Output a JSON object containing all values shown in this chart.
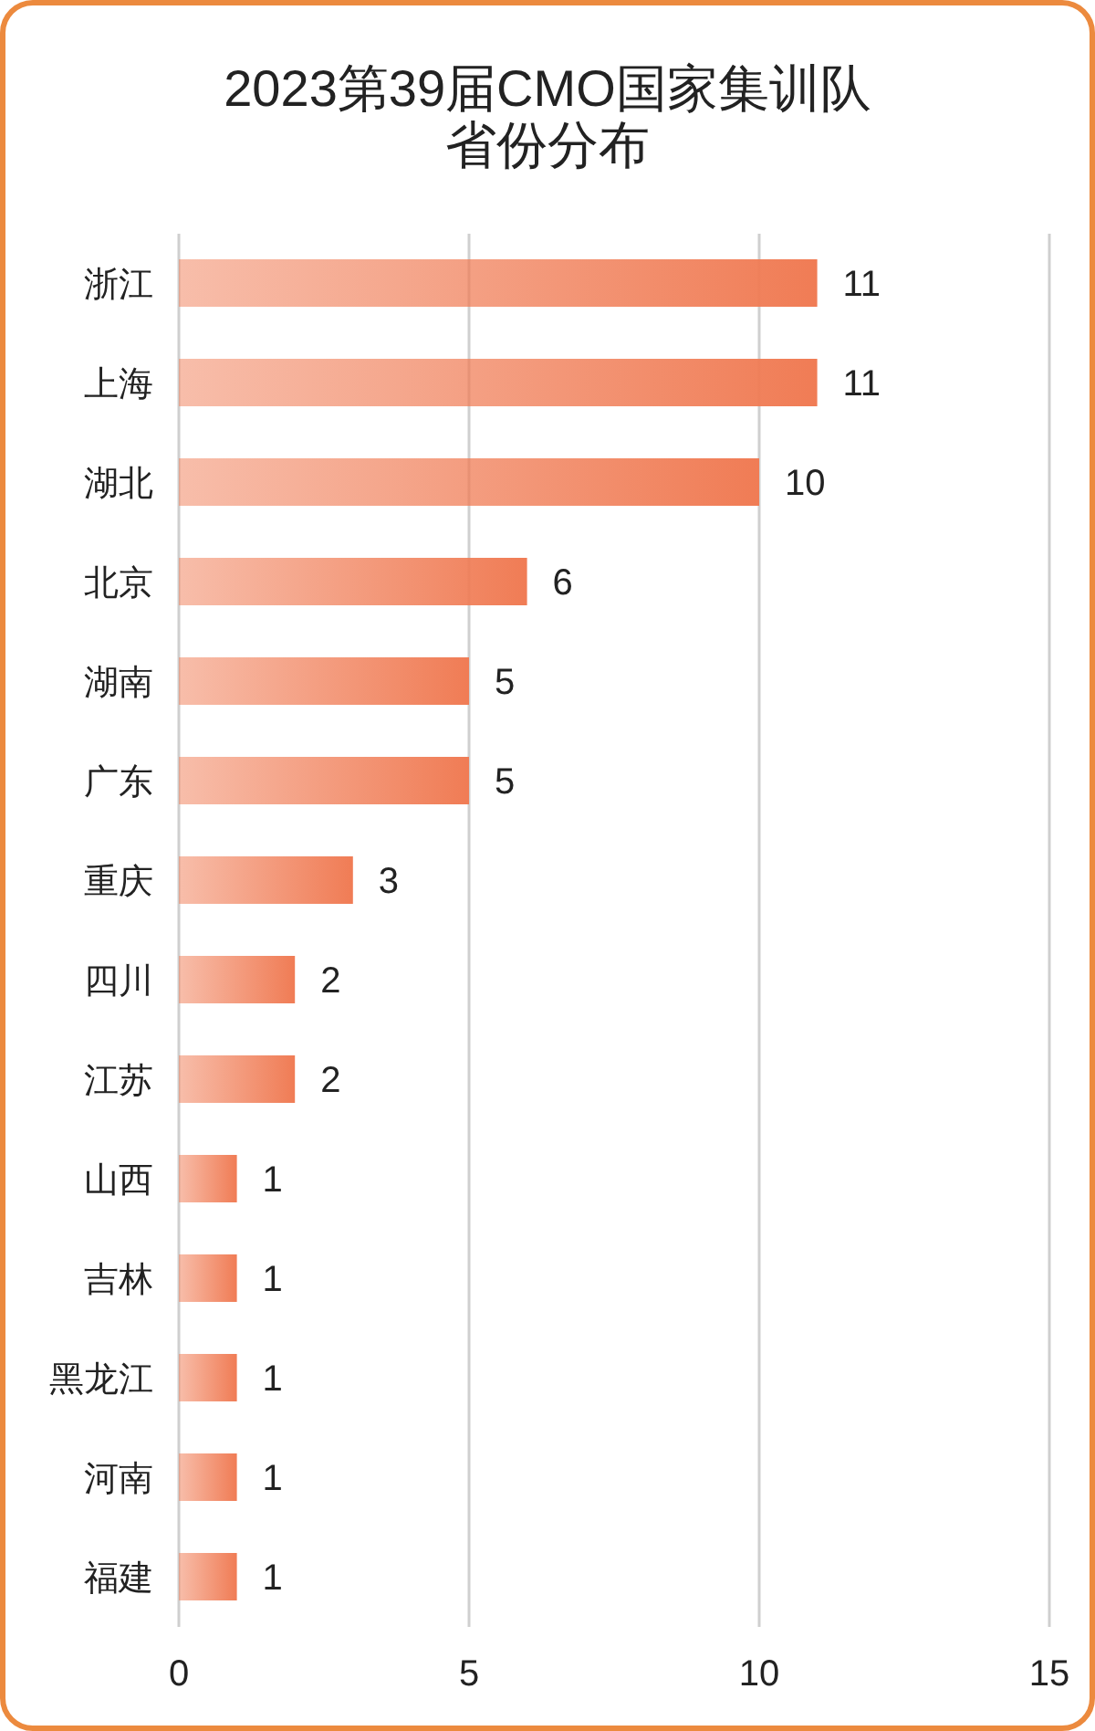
{
  "chart_data": {
    "type": "bar",
    "orientation": "horizontal",
    "title": "2023第39届CMO国家集训队省份分布",
    "categories": [
      "浙江",
      "上海",
      "湖北",
      "北京",
      "湖南",
      "广东",
      "重庆",
      "四川",
      "江苏",
      "山西",
      "吉林",
      "黑龙江",
      "河南",
      "福建"
    ],
    "values": [
      11,
      11,
      10,
      6,
      5,
      5,
      3,
      2,
      2,
      1,
      1,
      1,
      1,
      1
    ],
    "color": "#f07c55",
    "xlim": [
      0,
      15
    ],
    "xticks": [
      0,
      5,
      10,
      15
    ],
    "grid": "x",
    "data_labels": true
  }
}
